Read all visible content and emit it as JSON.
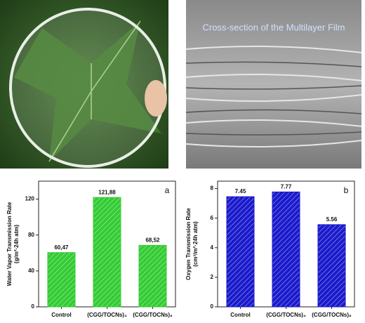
{
  "panels": {
    "sem_caption": "Cross-section of the Multilayer Film"
  },
  "chart_data": [
    {
      "type": "bar",
      "panel_label": "a",
      "ylabel": [
        "Water Vapor Transmission Rate",
        "(g/m²·24h atm)"
      ],
      "categories": [
        "Control",
        "(CGG/TOCNs)₄",
        "(CGG/TOCNs)₈"
      ],
      "values": [
        60.47,
        121.88,
        68.52
      ],
      "value_labels": [
        "60,47",
        "121,88",
        "68,52"
      ],
      "color": "#33cc33",
      "ylim": [
        0,
        140
      ],
      "yticks": [
        0,
        40,
        80,
        120
      ]
    },
    {
      "type": "bar",
      "panel_label": "b",
      "ylabel": [
        "Oxygen Transmission Rate",
        "(cm³/m²·24h atm)"
      ],
      "categories": [
        "Control",
        "(CGG/TOCNs)₄",
        "(CGG/TOCNs)₈"
      ],
      "values": [
        7.45,
        7.77,
        5.56
      ],
      "color": "#1a1acc",
      "ylim": [
        0,
        8.5
      ],
      "yticks": [
        0,
        2,
        4,
        6,
        8
      ]
    }
  ]
}
